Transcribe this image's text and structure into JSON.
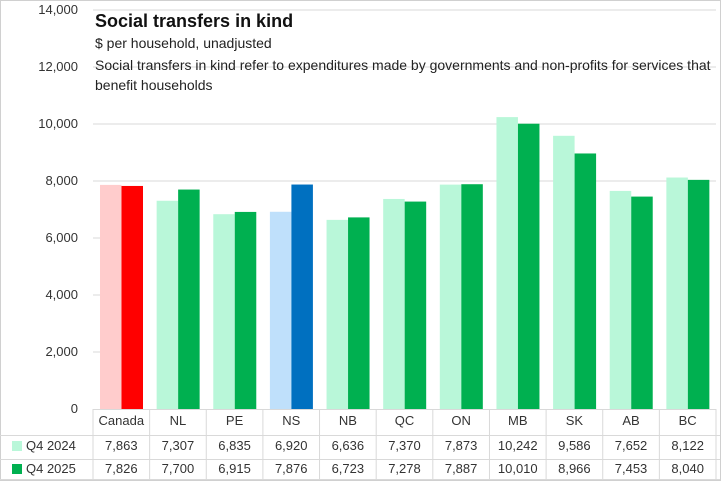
{
  "chart_data": {
    "type": "bar",
    "title": "Social transfers in kind",
    "subtitle": "$ per household, unadjusted",
    "note": "Social transfers in kind refer to expenditures made by governments and non-profits for services that benefit households",
    "xlabel": "",
    "ylabel": "",
    "ylim": [
      0,
      14000
    ],
    "yticks": [
      "0",
      "2,000",
      "4,000",
      "6,000",
      "8,000",
      "10,000",
      "12,000",
      "14,000"
    ],
    "ytick_values": [
      0,
      2000,
      4000,
      6000,
      8000,
      10000,
      12000,
      14000
    ],
    "categories": [
      "Canada",
      "NL",
      "PE",
      "NS",
      "NB",
      "QC",
      "ON",
      "MB",
      "SK",
      "AB",
      "BC"
    ],
    "series": [
      {
        "name": "Q4 2024",
        "values": [
          7863,
          7307,
          6835,
          6920,
          6636,
          7370,
          7873,
          10242,
          9586,
          7652,
          8122
        ],
        "labels": [
          "7,863",
          "7,307",
          "6,835",
          "6,920",
          "6,636",
          "7,370",
          "7,873",
          "10,242",
          "9,586",
          "7,652",
          "8,122"
        ]
      },
      {
        "name": "Q4 2025",
        "values": [
          7826,
          7700,
          6915,
          7876,
          6723,
          7278,
          7887,
          10010,
          8966,
          7453,
          8040
        ],
        "labels": [
          "7,826",
          "7,700",
          "6,915",
          "7,876",
          "6,723",
          "7,278",
          "7,887",
          "10,010",
          "8,966",
          "7,453",
          "8,040"
        ]
      }
    ],
    "colors": {
      "default": [
        "#b9f7d9",
        "#00b050"
      ],
      "Canada": [
        "#ffcccc",
        "#ff0000"
      ],
      "NS": [
        "#bfe0fb",
        "#0070c0"
      ]
    },
    "legend": "data-table-below",
    "grid": true
  }
}
